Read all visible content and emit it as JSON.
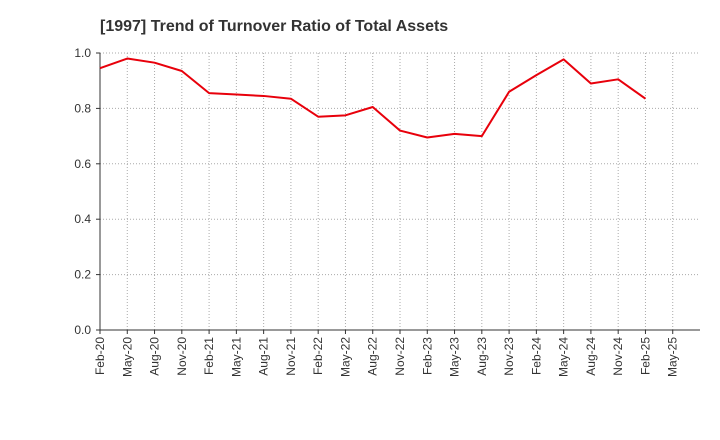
{
  "chart_data": {
    "type": "line",
    "title": "[1997]  Trend of Turnover Ratio of Total Assets",
    "xlabel": "",
    "ylabel": "",
    "ylim": [
      0.0,
      1.0
    ],
    "y_ticks": [
      "0.0",
      "0.2",
      "0.4",
      "0.6",
      "0.8",
      "1.0"
    ],
    "x_ticks": [
      "Feb-20",
      "May-20",
      "Aug-20",
      "Nov-20",
      "Feb-21",
      "May-21",
      "Aug-21",
      "Nov-21",
      "Feb-22",
      "May-22",
      "Aug-22",
      "Nov-22",
      "Feb-23",
      "May-23",
      "Aug-23",
      "Nov-23",
      "Feb-24",
      "May-24",
      "Aug-24",
      "Nov-24",
      "Feb-25",
      "May-25"
    ],
    "grid": true,
    "series": [
      {
        "color": "#e8000b",
        "x": [
          "Feb-20",
          "May-20",
          "Aug-20",
          "Nov-20",
          "Feb-21",
          "May-21",
          "Aug-21",
          "Nov-21",
          "Feb-22",
          "May-22",
          "Aug-22",
          "Nov-22",
          "Feb-23",
          "May-23",
          "Aug-23",
          "Nov-23",
          "Feb-24",
          "May-24",
          "Aug-24",
          "Nov-24",
          "Feb-25"
        ],
        "values": [
          0.945,
          0.98,
          0.965,
          0.935,
          0.855,
          0.85,
          0.845,
          0.835,
          0.77,
          0.775,
          0.805,
          0.72,
          0.695,
          0.708,
          0.7,
          0.86,
          0.92,
          0.977,
          0.89,
          0.905,
          0.835
        ]
      }
    ]
  }
}
